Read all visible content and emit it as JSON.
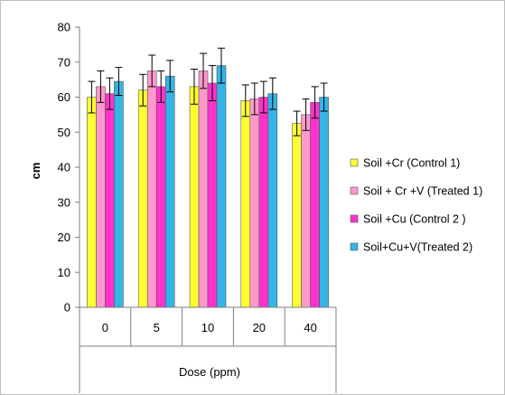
{
  "chart_data": {
    "type": "bar",
    "xlabel": "Dose (ppm)",
    "ylabel": "cm",
    "ylim": [
      0,
      80
    ],
    "yticks": [
      0,
      10,
      20,
      30,
      40,
      50,
      60,
      70,
      80
    ],
    "categories": [
      "0",
      "5",
      "10",
      "20",
      "40"
    ],
    "grid": false,
    "legend_position": "right",
    "series": [
      {
        "name": "Soil +Cr (Control 1)",
        "color": "#ffff33",
        "values": [
          60,
          62,
          63,
          59,
          52.5
        ],
        "errors": [
          4.5,
          4.5,
          5,
          4.5,
          3.5
        ]
      },
      {
        "name": "Soil + Cr +V (Treated 1)",
        "color": "#ff99cc",
        "values": [
          63,
          67.5,
          67.5,
          59.5,
          55
        ],
        "errors": [
          4.5,
          4.5,
          5,
          4.5,
          4.5
        ]
      },
      {
        "name": "Soil +Cu (Control 2 )",
        "color": "#ff33cc",
        "values": [
          61,
          63,
          64,
          60,
          58.5
        ],
        "errors": [
          4.5,
          4.5,
          5,
          4.5,
          4.5
        ]
      },
      {
        "name": "Soil+Cu+V(Treated 2)",
        "color": "#33b5e5",
        "values": [
          64.5,
          66,
          69,
          61,
          60
        ],
        "errors": [
          4,
          4.5,
          5,
          4.5,
          4
        ]
      }
    ]
  }
}
